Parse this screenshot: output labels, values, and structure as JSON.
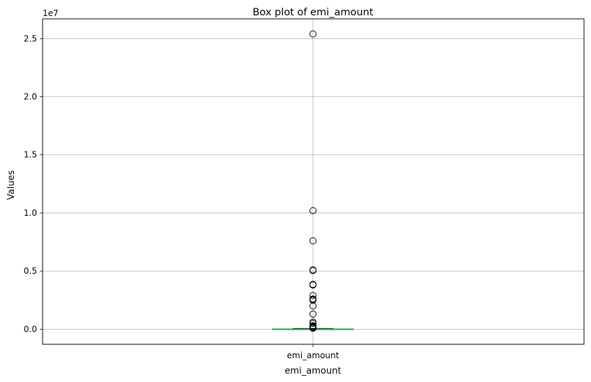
{
  "chart_data": {
    "type": "box",
    "title": "Box plot of emi_amount",
    "xlabel": "emi_amount",
    "ylabel": "Values",
    "y_offset_label": "1e7",
    "categories": [
      "emi_amount"
    ],
    "y_ticks": [
      0.0,
      0.5,
      1.0,
      1.5,
      2.0,
      2.5
    ],
    "y_tick_labels": [
      "0.0",
      "0.5",
      "1.0",
      "1.5",
      "2.0",
      "2.5"
    ],
    "ylim": [
      -1300000,
      26700000
    ],
    "grid": true,
    "box": {
      "q1": 2000,
      "median": 8000,
      "q3": 25000,
      "whisker_low": 0,
      "whisker_high": 60000
    },
    "outliers": [
      25400000,
      10200000,
      7600000,
      5100000,
      5050000,
      3850000,
      3800000,
      2900000,
      2600000,
      2550000,
      2500000,
      2000000,
      1300000,
      600000,
      500000,
      300000,
      250000,
      200000,
      150000,
      120000,
      100000,
      80000
    ],
    "colors": {
      "box": "#1f77b4",
      "median": "#2ca02c",
      "whisker": "#1f77b4",
      "outlier": "#000000",
      "grid": "#b0b0b0"
    }
  }
}
